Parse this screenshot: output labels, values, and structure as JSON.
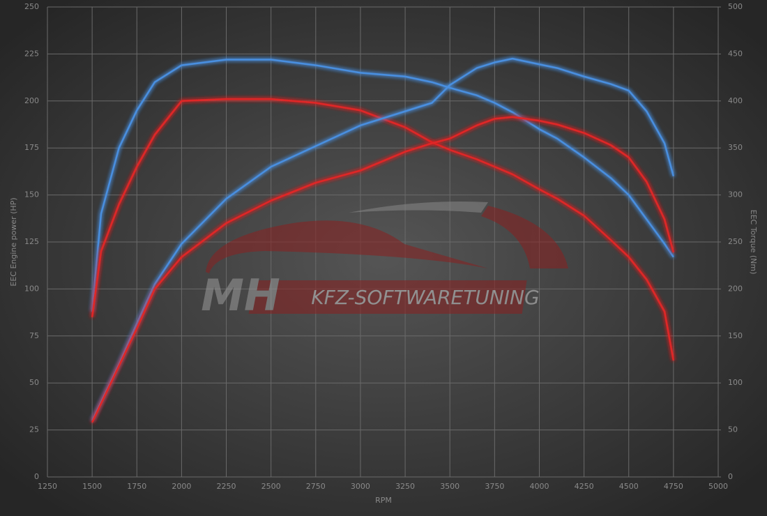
{
  "chart_data": {
    "type": "line",
    "x_label": "RPM",
    "y_label": "EEC Engine power (HP)",
    "y2_label": "EEC Torque (Nm)",
    "watermark": [
      "MH",
      "KFZ-SOFTWARETUNING"
    ],
    "xlim": [
      1250,
      5000
    ],
    "xticks": [
      1250,
      1500,
      1750,
      2000,
      2250,
      2500,
      2750,
      3000,
      3250,
      3500,
      3750,
      4000,
      4250,
      4500,
      4750,
      5000
    ],
    "ylim": [
      0,
      250
    ],
    "yticks": [
      0,
      25,
      50,
      75,
      100,
      125,
      150,
      175,
      200,
      225,
      250
    ],
    "y2lim": [
      0,
      500
    ],
    "y2ticks": [
      0,
      50,
      100,
      150,
      200,
      250,
      300,
      350,
      400,
      450,
      500
    ],
    "grid": true,
    "x": [
      1500,
      1550,
      1650,
      1750,
      1850,
      2000,
      2250,
      2500,
      2750,
      3000,
      3250,
      3400,
      3500,
      3650,
      3750,
      3850,
      4000,
      4100,
      4250,
      4400,
      4500,
      4600,
      4700,
      4750
    ],
    "series": [
      {
        "color": "#4a8fe0",
        "axis": "y",
        "values": [
          88,
          140,
          175,
          195,
          210,
          219,
          222,
          222,
          219,
          215,
          213,
          210,
          207,
          203,
          199,
          194,
          185,
          180,
          170,
          159,
          150,
          137,
          124,
          117
        ]
      },
      {
        "color": "#e02828",
        "axis": "y",
        "values": [
          85,
          120,
          145,
          165,
          182,
          200,
          201,
          201,
          199,
          195,
          186,
          178,
          174,
          169,
          165,
          161,
          153,
          148,
          139,
          126,
          117,
          105,
          88,
          62
        ]
      },
      {
        "color": "#4a8fe0",
        "axis": "y2",
        "values": [
          60,
          80,
          120,
          163,
          205,
          248,
          296,
          330,
          352,
          374,
          389,
          398,
          417,
          435,
          441,
          445,
          439,
          435,
          426,
          418,
          411,
          389,
          355,
          320
        ]
      },
      {
        "color": "#e02828",
        "axis": "y2",
        "values": [
          58,
          78,
          118,
          158,
          200,
          234,
          270,
          294,
          313,
          326,
          346,
          355,
          360,
          374,
          381,
          383,
          379,
          375,
          366,
          353,
          340,
          314,
          274,
          239
        ]
      }
    ]
  }
}
